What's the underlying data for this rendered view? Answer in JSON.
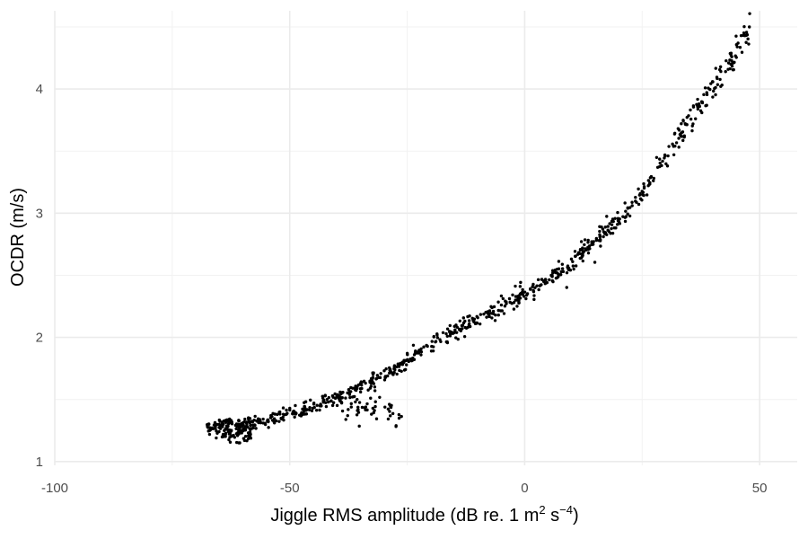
{
  "chart_data": {
    "type": "scatter",
    "title": "",
    "xlabel": {
      "prefix": "Jiggle RMS amplitude (dB re. 1 m",
      "sup1": "2",
      "middle": " s",
      "sup2": "−4",
      "suffix": ")"
    },
    "ylabel": "OCDR (m/s)",
    "xlim": [
      -100,
      58
    ],
    "ylim": [
      0.97,
      4.63
    ],
    "x_ticks": [
      -100,
      -50,
      0,
      50
    ],
    "x_tick_labels": [
      "-100",
      "-50",
      "0",
      "50"
    ],
    "y_ticks": [
      1,
      2,
      3,
      4
    ],
    "y_tick_labels": [
      "1",
      "2",
      "3",
      "4"
    ],
    "grid": true,
    "point_color": "#000000",
    "background": "#ffffff",
    "gridline_major_color": "#ebebeb",
    "gridline_minor_color": "#f2f2f2",
    "trend": [
      {
        "x": -68,
        "y": 1.27
      },
      {
        "x": -60,
        "y": 1.28
      },
      {
        "x": -55,
        "y": 1.33
      },
      {
        "x": -50,
        "y": 1.39
      },
      {
        "x": -45,
        "y": 1.45
      },
      {
        "x": -40,
        "y": 1.52
      },
      {
        "x": -35,
        "y": 1.6
      },
      {
        "x": -30,
        "y": 1.7
      },
      {
        "x": -25,
        "y": 1.82
      },
      {
        "x": -20,
        "y": 1.95
      },
      {
        "x": -15,
        "y": 2.05
      },
      {
        "x": -10,
        "y": 2.15
      },
      {
        "x": -5,
        "y": 2.25
      },
      {
        "x": 0,
        "y": 2.35
      },
      {
        "x": 5,
        "y": 2.47
      },
      {
        "x": 10,
        "y": 2.6
      },
      {
        "x": 15,
        "y": 2.78
      },
      {
        "x": 20,
        "y": 2.95
      },
      {
        "x": 25,
        "y": 3.15
      },
      {
        "x": 30,
        "y": 3.45
      },
      {
        "x": 35,
        "y": 3.75
      },
      {
        "x": 40,
        "y": 4.0
      },
      {
        "x": 45,
        "y": 4.3
      },
      {
        "x": 48,
        "y": 4.5
      }
    ],
    "offshoot_trend": [
      {
        "x": -40,
        "y": 1.44
      },
      {
        "x": -35,
        "y": 1.44
      },
      {
        "x": -30,
        "y": 1.45
      },
      {
        "x": -26,
        "y": 1.35
      }
    ],
    "x_extent": [
      -68,
      48
    ],
    "n_points": 900,
    "n_offshoot_points": 50,
    "dense_cluster": {
      "x": [
        -65,
        -58
      ],
      "y": [
        1.15,
        1.35
      ],
      "n_points": 90
    }
  }
}
